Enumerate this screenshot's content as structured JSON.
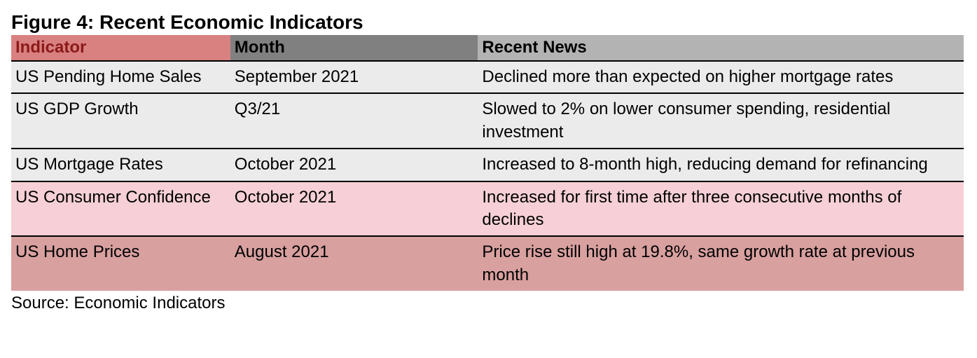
{
  "figure": {
    "title": "Figure 4: Recent Economic Indicators",
    "source": "Source: Economic Indicators",
    "columns": [
      {
        "label": "Indicator",
        "width": "23%",
        "header_bg": "#d98080",
        "header_fg": "#8b1a1a"
      },
      {
        "label": "Month",
        "width": "26%",
        "header_bg": "#808080",
        "header_fg": "#000000"
      },
      {
        "label": "Recent News",
        "width": "51%",
        "header_bg": "#b3b3b3",
        "header_fg": "#000000"
      }
    ],
    "rows": [
      {
        "bg": "#ebebeb",
        "indicator": "US Pending Home Sales",
        "month": "September 2021",
        "news": "Declined more than expected on higher mortgage rates"
      },
      {
        "bg": "#ebebeb",
        "indicator": "US GDP Growth",
        "month": "Q3/21",
        "news": "Slowed to 2% on lower consumer spending, residential investment"
      },
      {
        "bg": "#ebebeb",
        "indicator": "US Mortgage Rates",
        "month": "October 2021",
        "news": "Increased to 8-month high, reducing demand for refinancing"
      },
      {
        "bg": "#f6d0d6",
        "indicator": "US Consumer Confidence",
        "month": "October 2021",
        "news": "Increased for first time after three consecutive months of declines"
      },
      {
        "bg": "#d9a0a0",
        "indicator": "US Home Prices",
        "month": "August 2021",
        "news": "Price rise still high at 19.8%, same growth rate at previous month"
      }
    ]
  }
}
